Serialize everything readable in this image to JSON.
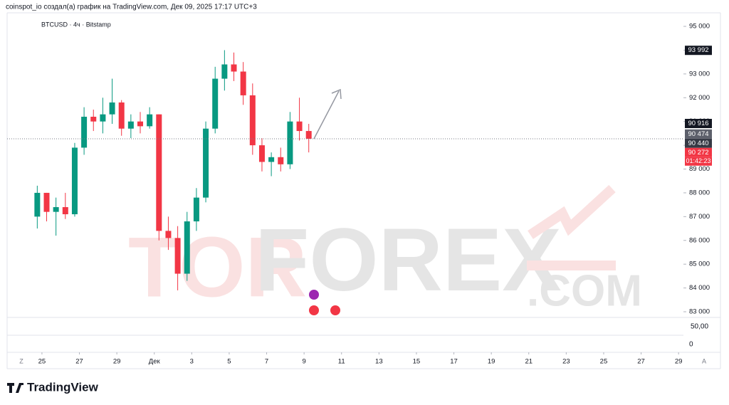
{
  "chart_data": {
    "type": "candlestick",
    "header": "coinspot_io создал(а) график на TradingView.com, Дек 09, 2025 17:17 UTC+3",
    "symbol": "BTCUSD · 4ч · Bitstamp",
    "up_color": "#089981",
    "down_color": "#f23645",
    "xlim": [
      -1.86,
      34.26
    ],
    "ylim": [
      82790,
      95570
    ],
    "xticks": [
      {
        "value": 0,
        "label": "25"
      },
      {
        "value": 2,
        "label": "27"
      },
      {
        "value": 4,
        "label": "29"
      },
      {
        "value": 6,
        "label": "Дек"
      },
      {
        "value": 8,
        "label": "3"
      },
      {
        "value": 10,
        "label": "5"
      },
      {
        "value": 12,
        "label": "7"
      },
      {
        "value": 14,
        "label": "9"
      },
      {
        "value": 16,
        "label": "11"
      },
      {
        "value": 18,
        "label": "13"
      },
      {
        "value": 20,
        "label": "15"
      },
      {
        "value": 22,
        "label": "17"
      },
      {
        "value": 24,
        "label": "19"
      },
      {
        "value": 26,
        "label": "21"
      },
      {
        "value": 28,
        "label": "23"
      },
      {
        "value": 30,
        "label": "25"
      },
      {
        "value": 32,
        "label": "27"
      },
      {
        "value": 34,
        "label": "29"
      }
    ],
    "yticks": [
      {
        "value": 83000,
        "label": "83 000"
      },
      {
        "value": 84000,
        "label": "84 000"
      },
      {
        "value": 85000,
        "label": "85 000"
      },
      {
        "value": 86000,
        "label": "86 000"
      },
      {
        "value": 87000,
        "label": "87 000"
      },
      {
        "value": 88000,
        "label": "88 000"
      },
      {
        "value": 89000,
        "label": "89 000"
      },
      {
        "value": 90000,
        "label": "90 000"
      },
      {
        "value": 91000,
        "label": "91 000"
      },
      {
        "value": 92000,
        "label": "92 000"
      },
      {
        "value": 93000,
        "label": "93 000"
      },
      {
        "value": 94000,
        "label": "94 000"
      },
      {
        "value": 95000,
        "label": "95 000"
      }
    ],
    "x": [
      -0.25,
      0.25,
      0.75,
      1.25,
      1.75,
      2.25,
      2.75,
      3.25,
      3.75,
      4.25,
      4.75,
      5.25,
      5.75,
      6.25,
      6.75,
      7.25,
      7.75,
      8.25,
      8.75,
      9.25,
      9.75,
      10.25,
      10.75,
      11.25,
      11.75,
      12.25,
      12.75,
      13.25,
      13.75,
      14.25
    ],
    "open": [
      87000,
      88000,
      87200,
      87400,
      87100,
      89900,
      91200,
      91000,
      91300,
      91800,
      90700,
      91000,
      90800,
      91300,
      86400,
      86100,
      84600,
      86800,
      87800,
      90700,
      92800,
      93400,
      93100,
      92100,
      90000,
      89300,
      89500,
      89200,
      91000,
      90600
    ],
    "high": [
      88300,
      88000,
      87800,
      88000,
      90100,
      91600,
      91500,
      92000,
      92800,
      91900,
      91300,
      91400,
      91600,
      91300,
      87000,
      86600,
      87200,
      88200,
      91000,
      93300,
      94000,
      93900,
      93500,
      92600,
      90300,
      89700,
      89900,
      91400,
      92000,
      90900
    ],
    "low": [
      86500,
      86800,
      86200,
      86900,
      87000,
      89600,
      90600,
      90500,
      90900,
      90400,
      90300,
      90500,
      90700,
      86000,
      85600,
      83900,
      84300,
      86400,
      87600,
      90500,
      92300,
      92700,
      91700,
      89600,
      88900,
      88700,
      88900,
      89000,
      90200,
      89700
    ],
    "close": [
      88000,
      87200,
      87400,
      87100,
      89900,
      91200,
      91000,
      91300,
      91800,
      90700,
      91000,
      90800,
      91300,
      86400,
      86100,
      84600,
      86800,
      87800,
      90700,
      92800,
      93400,
      93100,
      92100,
      90000,
      89300,
      89500,
      89200,
      91000,
      90600,
      90272
    ],
    "price_labels": [
      {
        "value": 93992,
        "label": "93 992",
        "color": "#131722"
      },
      {
        "value": 90916,
        "label": "90 916",
        "color": "#131722"
      },
      {
        "value": 90474,
        "label": "90 474",
        "color": "#5d606b"
      },
      {
        "value": 90440,
        "label": "90 440",
        "color": "#363a45"
      },
      {
        "value": 90272,
        "label": "90 272",
        "color": "#f23645"
      }
    ],
    "countdown": "01:42:23",
    "pane_labels": [
      "50,00",
      "0"
    ],
    "watermark": [
      "TOR",
      "FOREX",
      ".COM"
    ],
    "buttons": [
      "Z",
      "A"
    ],
    "brand": "TradingView"
  }
}
